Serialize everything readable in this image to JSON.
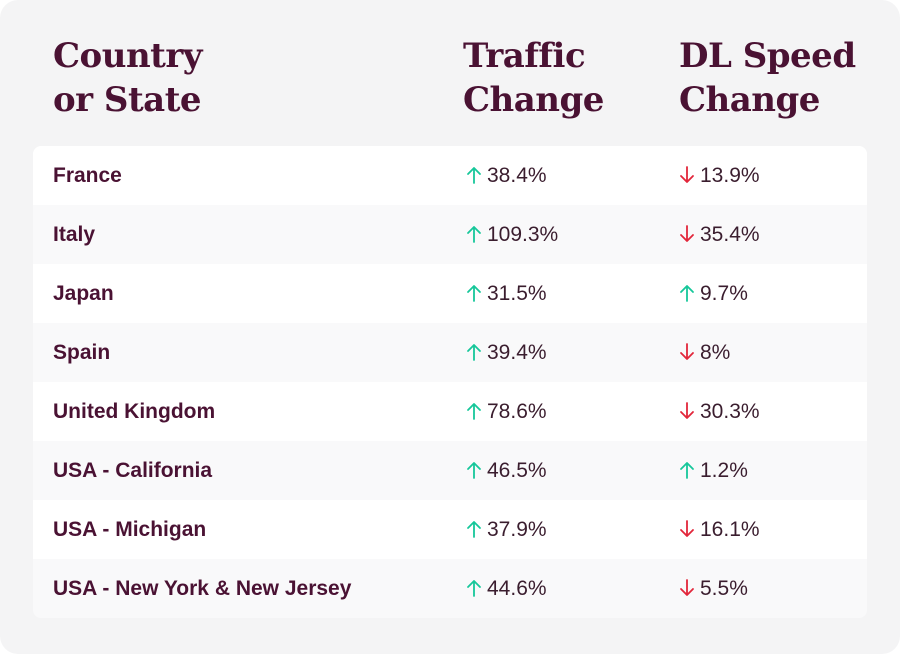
{
  "colors": {
    "up": "#16c79a",
    "down": "#e2263a",
    "heading": "#4a1233",
    "panel": "#f4f4f5"
  },
  "header": {
    "country_line1": "Country",
    "country_line2": "or State",
    "traffic_line1": "Traffic",
    "traffic_line2": "Change",
    "speed_line1": "DL Speed",
    "speed_line2": "Change"
  },
  "chart_data": {
    "type": "table",
    "columns": [
      "Country or State",
      "Traffic Change",
      "DL Speed Change"
    ],
    "rows": [
      {
        "name": "France",
        "traffic": "38.4%",
        "traffic_dir": "up",
        "speed": "13.9%",
        "speed_dir": "down"
      },
      {
        "name": "Italy",
        "traffic": "109.3%",
        "traffic_dir": "up",
        "speed": "35.4%",
        "speed_dir": "down"
      },
      {
        "name": "Japan",
        "traffic": "31.5%",
        "traffic_dir": "up",
        "speed": "9.7%",
        "speed_dir": "up"
      },
      {
        "name": "Spain",
        "traffic": "39.4%",
        "traffic_dir": "up",
        "speed": "8%",
        "speed_dir": "down"
      },
      {
        "name": "United Kingdom",
        "traffic": "78.6%",
        "traffic_dir": "up",
        "speed": "30.3%",
        "speed_dir": "down"
      },
      {
        "name": "USA - California",
        "traffic": "46.5%",
        "traffic_dir": "up",
        "speed": "1.2%",
        "speed_dir": "up"
      },
      {
        "name": "USA - Michigan",
        "traffic": "37.9%",
        "traffic_dir": "up",
        "speed": "16.1%",
        "speed_dir": "down"
      },
      {
        "name": "USA - New York & New Jersey",
        "traffic": "44.6%",
        "traffic_dir": "up",
        "speed": "5.5%",
        "speed_dir": "down"
      }
    ]
  }
}
